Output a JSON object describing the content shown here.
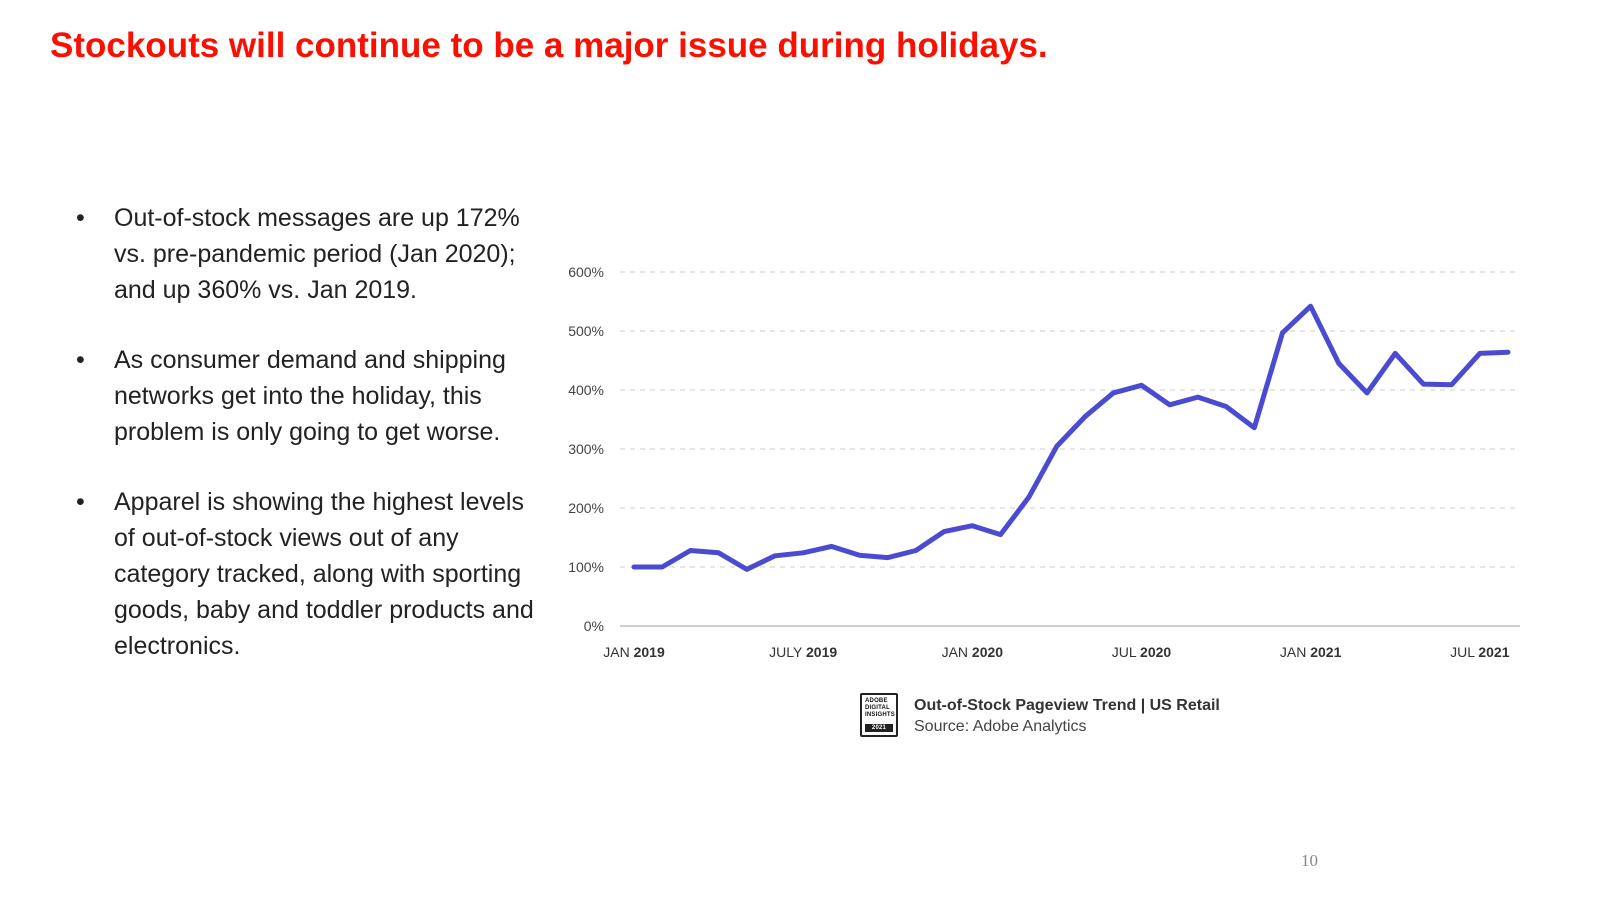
{
  "slide": {
    "title": "Stockouts will continue to be a major issue during holidays.",
    "page_number": "10",
    "title_color": "#fa0f00"
  },
  "bullets": [
    "Out-of-stock messages are up 172% vs. pre-pandemic period (Jan 2020); and up 360% vs. Jan 2019.",
    "As consumer demand and shipping networks get into the holiday, this problem is only going to get worse.",
    "Apparel is showing the highest levels of out-of-stock views out of any category tracked, along with sporting goods, baby and toddler products and electronics."
  ],
  "caption": {
    "badge_lines": [
      "ADOBE",
      "DIGITAL",
      "INSIGHTS"
    ],
    "badge_year": "2021",
    "title": "Out-of-Stock Pageview Trend | US Retail",
    "source": "Source: Adobe Analytics"
  },
  "chart_data": {
    "type": "line",
    "title": "Out-of-Stock Pageview Trend | US Retail",
    "ylabel": "",
    "xlabel": "",
    "ylim": [
      0,
      600
    ],
    "grid": true,
    "yticks": [
      "0%",
      "100%",
      "200%",
      "300%",
      "400%",
      "500%",
      "600%"
    ],
    "yticks_values": [
      0,
      100,
      200,
      300,
      400,
      500,
      600
    ],
    "xticks": [
      {
        "index": 0,
        "month": "JAN",
        "year": "2019"
      },
      {
        "index": 6,
        "month": "JULY",
        "year": "2019"
      },
      {
        "index": 12,
        "month": "JAN",
        "year": "2020"
      },
      {
        "index": 18,
        "month": "JUL",
        "year": "2020"
      },
      {
        "index": 24,
        "month": "JAN",
        "year": "2021"
      },
      {
        "index": 30,
        "month": "JUL",
        "year": "2021"
      }
    ],
    "series": [
      {
        "name": "Out-of-Stock Pageviews",
        "color": "#4b4bd2",
        "values": [
          100,
          100,
          128,
          124,
          96,
          119,
          124,
          135,
          120,
          116,
          128,
          160,
          170,
          155,
          218,
          305,
          355,
          395,
          408,
          375,
          388,
          372,
          336,
          497,
          542,
          445,
          395,
          462,
          410,
          409,
          462,
          464
        ]
      }
    ]
  }
}
